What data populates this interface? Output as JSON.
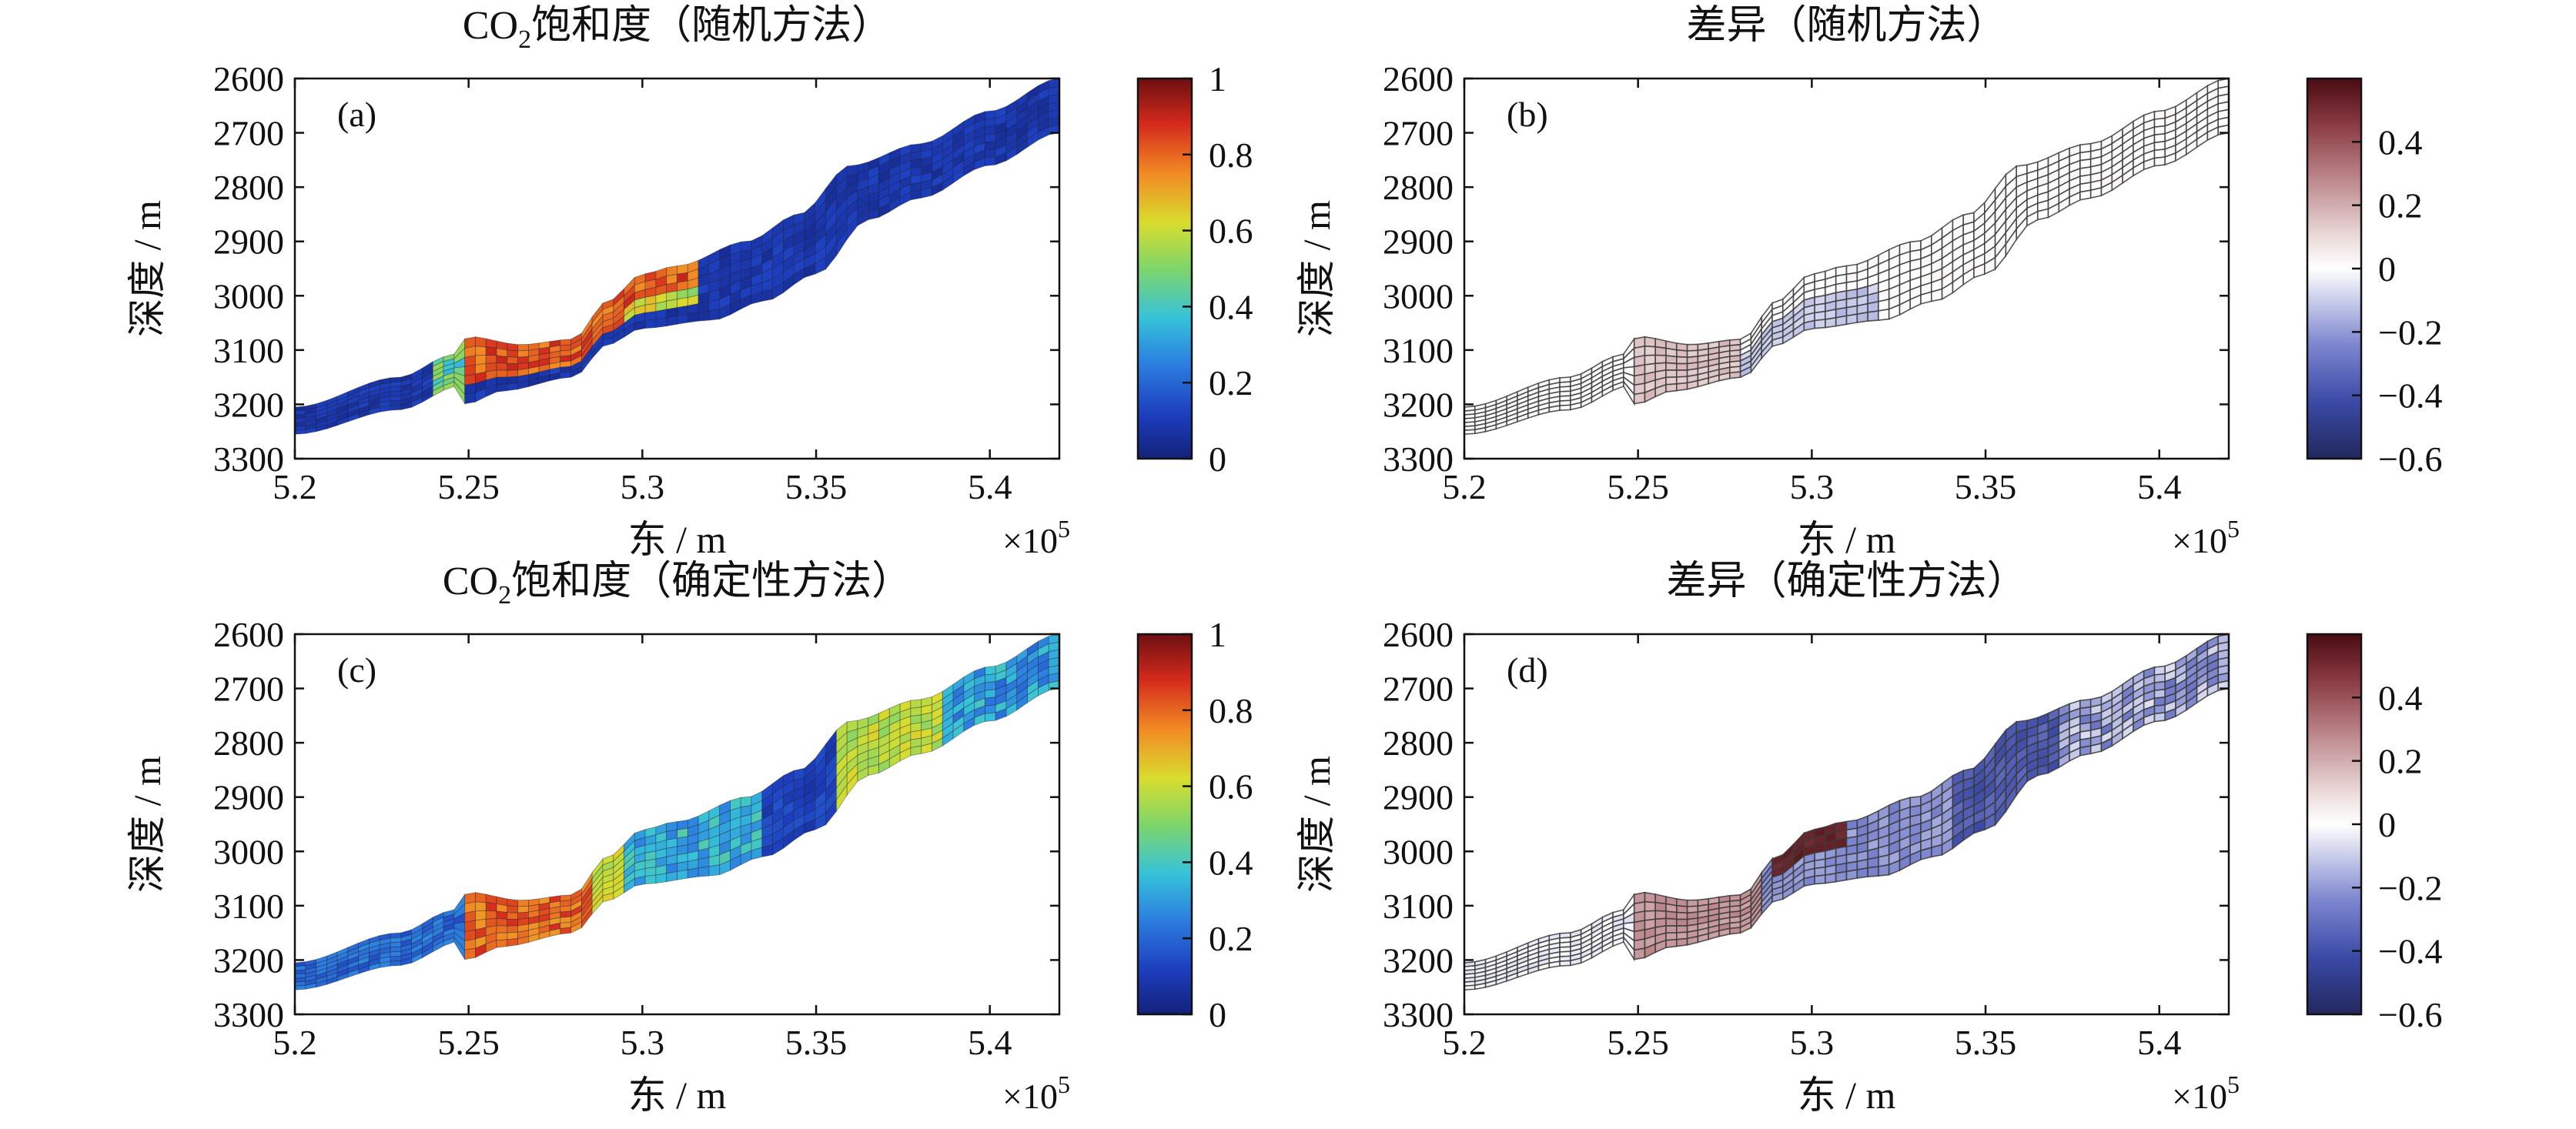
{
  "chart_data": [
    {
      "id": "a",
      "type": "heatmap",
      "panel_label": "(a)",
      "title_prefix": "CO",
      "title_sub": "2",
      "title_rest": "饱和度（随机方法）",
      "xlabel": "东 / m",
      "ylabel": "深度 / m",
      "x_multiplier": "×10",
      "x_multiplier_exp": "5",
      "xlim": [
        5.2,
        5.42
      ],
      "ylim": [
        2600,
        3300
      ],
      "xticks": [
        5.2,
        5.25,
        5.3,
        5.35,
        5.4
      ],
      "xtick_labels": [
        "5.2",
        "5.25",
        "5.3",
        "5.35",
        "5.4"
      ],
      "yticks": [
        2600,
        2700,
        2800,
        2900,
        3000,
        3100,
        3200,
        3300
      ],
      "ytick_labels": [
        "2600",
        "2700",
        "2800",
        "2900",
        "3000",
        "3100",
        "3200",
        "3300"
      ],
      "colorbar": {
        "colormap": "jet",
        "range": [
          0,
          1
        ],
        "ticks": [
          0,
          0.2,
          0.4,
          0.6,
          0.8,
          1
        ],
        "tick_labels": [
          "0",
          "0.2",
          "0.4",
          "0.6",
          "0.8",
          "1"
        ]
      },
      "grid": false,
      "field": "random_saturation"
    },
    {
      "id": "b",
      "type": "heatmap",
      "panel_label": "(b)",
      "title_prefix": "差异（随机方法）",
      "title_sub": "",
      "title_rest": "",
      "xlabel": "东 / m",
      "ylabel": "深度 / m",
      "x_multiplier": "×10",
      "x_multiplier_exp": "5",
      "xlim": [
        5.2,
        5.42
      ],
      "ylim": [
        2600,
        3300
      ],
      "xticks": [
        5.2,
        5.25,
        5.3,
        5.35,
        5.4
      ],
      "xtick_labels": [
        "5.2",
        "5.25",
        "5.3",
        "5.35",
        "5.4"
      ],
      "yticks": [
        2600,
        2700,
        2800,
        2900,
        3000,
        3100,
        3200,
        3300
      ],
      "ytick_labels": [
        "2600",
        "2700",
        "2800",
        "2900",
        "3000",
        "3100",
        "3200",
        "3300"
      ],
      "colorbar": {
        "colormap": "diverging",
        "range": [
          -0.6,
          0.6
        ],
        "ticks": [
          -0.6,
          -0.4,
          -0.2,
          0,
          0.2,
          0.4
        ],
        "tick_labels": [
          "−0.6",
          "−0.4",
          "−0.2",
          "0",
          "0.2",
          "0.4"
        ]
      },
      "grid": false,
      "field": "random_difference"
    },
    {
      "id": "c",
      "type": "heatmap",
      "panel_label": "(c)",
      "title_prefix": "CO",
      "title_sub": "2",
      "title_rest": "饱和度（确定性方法）",
      "xlabel": "东 / m",
      "ylabel": "深度 / m",
      "x_multiplier": "×10",
      "x_multiplier_exp": "5",
      "xlim": [
        5.2,
        5.42
      ],
      "ylim": [
        2600,
        3300
      ],
      "xticks": [
        5.2,
        5.25,
        5.3,
        5.35,
        5.4
      ],
      "xtick_labels": [
        "5.2",
        "5.25",
        "5.3",
        "5.35",
        "5.4"
      ],
      "yticks": [
        2600,
        2700,
        2800,
        2900,
        3000,
        3100,
        3200,
        3300
      ],
      "ytick_labels": [
        "2600",
        "2700",
        "2800",
        "2900",
        "3000",
        "3100",
        "3200",
        "3300"
      ],
      "colorbar": {
        "colormap": "jet",
        "range": [
          0,
          1
        ],
        "ticks": [
          0,
          0.2,
          0.4,
          0.6,
          0.8,
          1
        ],
        "tick_labels": [
          "0",
          "0.2",
          "0.4",
          "0.6",
          "0.8",
          "1"
        ]
      },
      "grid": false,
      "field": "deterministic_saturation"
    },
    {
      "id": "d",
      "type": "heatmap",
      "panel_label": "(d)",
      "title_prefix": "差异（确定性方法）",
      "title_sub": "",
      "title_rest": "",
      "xlabel": "东 / m",
      "ylabel": "深度 / m",
      "x_multiplier": "×10",
      "x_multiplier_exp": "5",
      "xlim": [
        5.2,
        5.42
      ],
      "ylim": [
        2600,
        3300
      ],
      "xticks": [
        5.2,
        5.25,
        5.3,
        5.35,
        5.4
      ],
      "xtick_labels": [
        "5.2",
        "5.25",
        "5.3",
        "5.35",
        "5.4"
      ],
      "yticks": [
        2600,
        2700,
        2800,
        2900,
        3000,
        3100,
        3200,
        3300
      ],
      "ytick_labels": [
        "2600",
        "2700",
        "2800",
        "2900",
        "3000",
        "3100",
        "3200",
        "3300"
      ],
      "colorbar": {
        "colormap": "diverging",
        "range": [
          -0.6,
          0.6
        ],
        "ticks": [
          -0.6,
          -0.4,
          -0.2,
          0,
          0.2,
          0.4
        ],
        "tick_labels": [
          "−0.6",
          "−0.4",
          "−0.2",
          "0",
          "0.2",
          "0.4"
        ]
      },
      "grid": false,
      "field": "deterministic_difference"
    }
  ]
}
